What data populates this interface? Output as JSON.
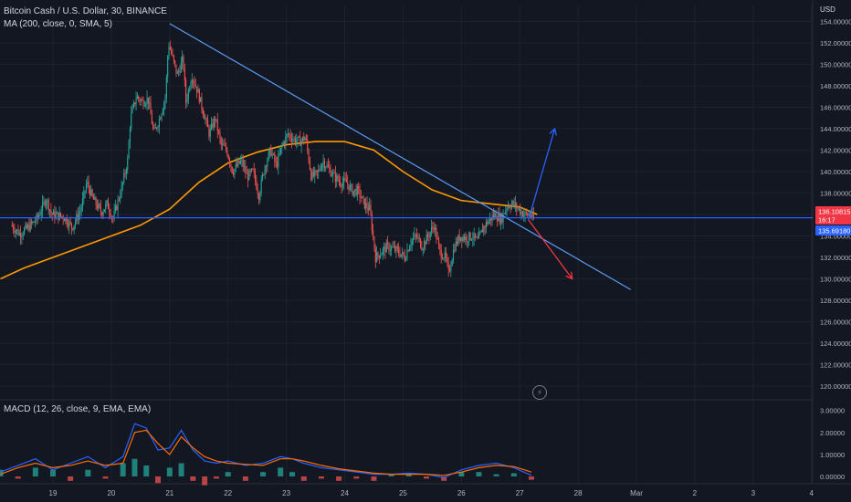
{
  "header": {
    "symbol_line": "Bitcoin Cash / U.S. Dollar, 30, BINANCE",
    "ma_line": "MA (200, close, 0, SMA, 5)",
    "macd_line": "MACD (12, 26, close, 9, EMA, EMA)",
    "currency": "USD"
  },
  "colors": {
    "background": "#131722",
    "grid": "#1e222d",
    "up": "#26a69a",
    "down": "#ef5350",
    "ma": "#ff9800",
    "trendline": "#5b9cf6",
    "horizontal": "#2962ff",
    "arrow_up": "#2962ff",
    "arrow_down": "#f23645",
    "macd_line": "#2962ff",
    "signal_line": "#ff6d00"
  },
  "icons": {
    "alert": "lightning-icon"
  },
  "chart_data": [
    {
      "type": "candlestick",
      "title": "Bitcoin Cash / U.S. Dollar, 30, BINANCE",
      "ylabel": "USD",
      "ylim": [
        119,
        155
      ],
      "x_ticks": [
        "19",
        "20",
        "21",
        "22",
        "23",
        "24",
        "25",
        "26",
        "27",
        "28",
        "Mar",
        "2",
        "3",
        "4"
      ],
      "y_ticks": [
        "120.00000",
        "122.00000",
        "124.00000",
        "126.00000",
        "128.00000",
        "130.00000",
        "132.00000",
        "134.00000",
        "136.00000",
        "138.00000",
        "140.00000",
        "142.00000",
        "144.00000",
        "146.00000",
        "148.00000",
        "150.00000",
        "152.00000",
        "154.00000"
      ],
      "price_tags": [
        {
          "value": "136.10815",
          "sub": "16:17",
          "color": "#f23645"
        },
        {
          "value": "135.69180",
          "sub": "",
          "color": "#2962ff"
        }
      ],
      "ohlc_path": [
        [
          18.3,
          135.0
        ],
        [
          18.45,
          134.2
        ],
        [
          18.6,
          134.8
        ],
        [
          18.75,
          135.6
        ],
        [
          18.9,
          137.5
        ],
        [
          19.0,
          136.0
        ],
        [
          19.2,
          135.8
        ],
        [
          19.35,
          134.8
        ],
        [
          19.5,
          136.5
        ],
        [
          19.6,
          139.0
        ],
        [
          19.7,
          137.5
        ],
        [
          19.85,
          136.2
        ],
        [
          19.95,
          137.0
        ],
        [
          20.05,
          135.6
        ],
        [
          20.2,
          138.5
        ],
        [
          20.3,
          141.0
        ],
        [
          20.35,
          145.0
        ],
        [
          20.45,
          147.0
        ],
        [
          20.55,
          146.5
        ],
        [
          20.65,
          146.8
        ],
        [
          20.75,
          143.5
        ],
        [
          20.85,
          145.0
        ],
        [
          20.95,
          147.0
        ],
        [
          21.0,
          152.0
        ],
        [
          21.05,
          151.0
        ],
        [
          21.15,
          149.0
        ],
        [
          21.25,
          150.5
        ],
        [
          21.3,
          146.5
        ],
        [
          21.4,
          149.0
        ],
        [
          21.5,
          147.5
        ],
        [
          21.6,
          145.5
        ],
        [
          21.7,
          143.5
        ],
        [
          21.8,
          145.0
        ],
        [
          21.9,
          142.5
        ],
        [
          22.0,
          142.0
        ],
        [
          22.1,
          140.0
        ],
        [
          22.25,
          141.0
        ],
        [
          22.35,
          139.5
        ],
        [
          22.45,
          140.0
        ],
        [
          22.55,
          137.8
        ],
        [
          22.65,
          140.5
        ],
        [
          22.75,
          142.0
        ],
        [
          22.85,
          140.5
        ],
        [
          22.95,
          142.5
        ],
        [
          23.05,
          143.5
        ],
        [
          23.15,
          143.0
        ],
        [
          23.25,
          142.8
        ],
        [
          23.35,
          143.2
        ],
        [
          23.45,
          139.5
        ],
        [
          23.55,
          139.8
        ],
        [
          23.65,
          141.0
        ],
        [
          23.75,
          140.2
        ],
        [
          23.85,
          139.5
        ],
        [
          23.95,
          139.0
        ],
        [
          24.05,
          139.0
        ],
        [
          24.15,
          138.2
        ],
        [
          24.25,
          138.2
        ],
        [
          24.35,
          137.0
        ],
        [
          24.45,
          136.5
        ],
        [
          24.55,
          132.0
        ],
        [
          24.65,
          132.5
        ],
        [
          24.75,
          133.0
        ],
        [
          24.85,
          132.8
        ],
        [
          24.95,
          132.5
        ],
        [
          25.05,
          132.0
        ],
        [
          25.15,
          133.5
        ],
        [
          25.25,
          134.0
        ],
        [
          25.35,
          133.0
        ],
        [
          25.45,
          134.0
        ],
        [
          25.55,
          135.0
        ],
        [
          25.65,
          132.5
        ],
        [
          25.75,
          132.0
        ],
        [
          25.8,
          130.5
        ],
        [
          25.9,
          133.0
        ],
        [
          26.0,
          134.0
        ],
        [
          26.1,
          133.8
        ],
        [
          26.2,
          134.0
        ],
        [
          26.3,
          133.5
        ],
        [
          26.4,
          134.8
        ],
        [
          26.5,
          135.5
        ],
        [
          26.6,
          136.0
        ],
        [
          26.7,
          135.5
        ],
        [
          26.8,
          136.8
        ],
        [
          26.9,
          137.0
        ],
        [
          27.0,
          136.5
        ],
        [
          27.1,
          136.0
        ],
        [
          27.2,
          136.0
        ],
        [
          27.25,
          135.6
        ]
      ],
      "series": [
        {
          "name": "MA (200, close, 0, SMA, 5)",
          "x": [
            18.1,
            18.5,
            19.0,
            19.5,
            20.0,
            20.5,
            21.0,
            21.5,
            22.0,
            22.5,
            23.0,
            23.5,
            24.0,
            24.5,
            25.0,
            25.5,
            26.0,
            26.5,
            27.0,
            27.3
          ],
          "y": [
            130.0,
            131.0,
            132.0,
            133.0,
            134.0,
            135.0,
            136.5,
            139.0,
            140.8,
            141.8,
            142.5,
            142.8,
            142.8,
            142.0,
            140.0,
            138.3,
            137.3,
            137.0,
            136.7,
            136.0
          ]
        }
      ],
      "lines": [
        {
          "kind": "trendline",
          "from": [
            21.0,
            153.8
          ],
          "to": [
            28.9,
            129.0
          ]
        },
        {
          "kind": "horizontal",
          "value": 135.69
        },
        {
          "kind": "arrow_up",
          "from": [
            27.15,
            135.5
          ],
          "to": [
            27.6,
            144.0
          ]
        },
        {
          "kind": "arrow_down",
          "from": [
            27.15,
            135.5
          ],
          "to": [
            27.9,
            130.0
          ]
        }
      ]
    },
    {
      "type": "histogram",
      "title": "MACD (12, 26, close, 9, EMA, EMA)",
      "ylim": [
        -0.1,
        3.1
      ],
      "y_ticks": [
        "0.00000",
        "1.00000",
        "2.00000",
        "3.00000"
      ],
      "x": [
        18.1,
        18.4,
        18.7,
        19.0,
        19.3,
        19.6,
        19.9,
        20.2,
        20.4,
        20.6,
        20.8,
        21.0,
        21.2,
        21.4,
        21.6,
        21.8,
        22.0,
        22.3,
        22.6,
        22.9,
        23.1,
        23.3,
        23.6,
        23.9,
        24.2,
        24.5,
        24.8,
        25.1,
        25.4,
        25.7,
        26.0,
        26.3,
        26.6,
        26.9,
        27.2
      ],
      "histogram": [
        0.3,
        -0.1,
        0.4,
        0.3,
        -0.2,
        0.3,
        -0.1,
        0.6,
        0.8,
        0.5,
        -0.3,
        0.4,
        0.6,
        -0.2,
        -0.4,
        -0.1,
        0.2,
        -0.2,
        0.2,
        0.4,
        0.2,
        -0.2,
        -0.1,
        -0.2,
        -0.1,
        -0.2,
        0.1,
        0.1,
        -0.1,
        -0.2,
        0.2,
        0.2,
        0.1,
        0.15,
        -0.15
      ],
      "series": [
        {
          "name": "MACD",
          "y": [
            0.2,
            0.5,
            0.8,
            0.3,
            0.6,
            0.9,
            0.4,
            0.9,
            2.4,
            2.2,
            1.2,
            1.3,
            2.1,
            1.2,
            0.7,
            0.6,
            0.7,
            0.5,
            0.6,
            0.9,
            0.8,
            0.6,
            0.4,
            0.3,
            0.2,
            0.1,
            0.1,
            0.15,
            0.1,
            -0.05,
            0.3,
            0.5,
            0.6,
            0.4,
            0.05
          ]
        },
        {
          "name": "Signal",
          "y": [
            0.1,
            0.4,
            0.6,
            0.4,
            0.5,
            0.7,
            0.5,
            0.6,
            2.0,
            2.1,
            1.5,
            1.0,
            1.8,
            1.3,
            0.9,
            0.7,
            0.6,
            0.55,
            0.5,
            0.8,
            0.8,
            0.7,
            0.5,
            0.35,
            0.25,
            0.15,
            0.1,
            0.1,
            0.1,
            0.05,
            0.2,
            0.4,
            0.5,
            0.45,
            0.2
          ]
        }
      ]
    }
  ]
}
